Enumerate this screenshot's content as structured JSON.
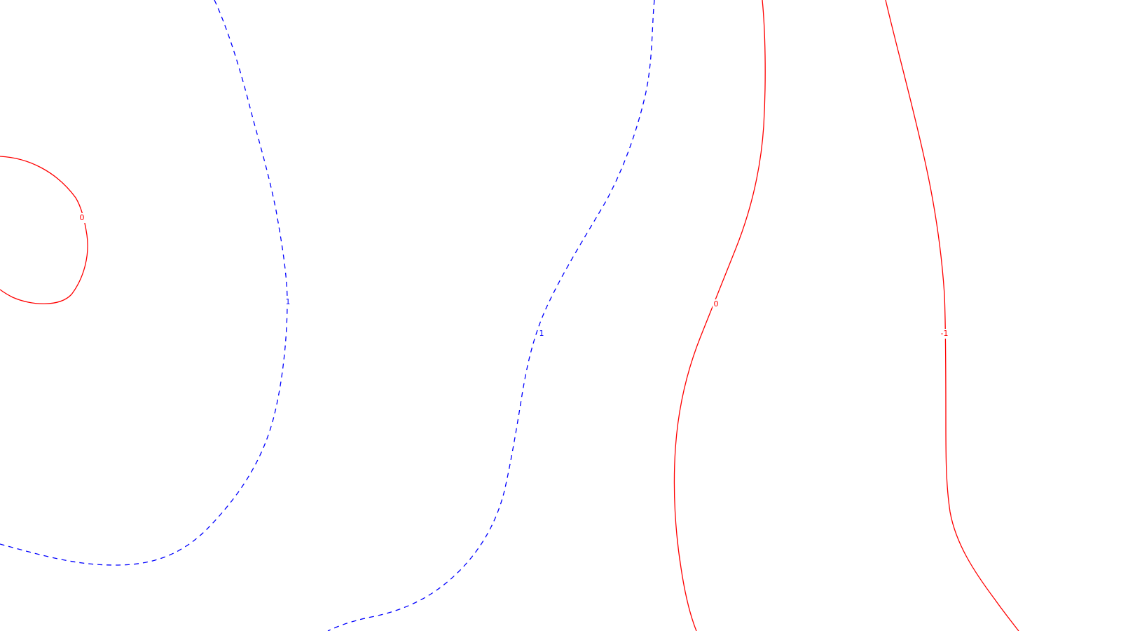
{
  "chart_data": {
    "type": "contour",
    "title": "",
    "xlabel": "",
    "ylabel": "",
    "axes_visible": false,
    "grid": false,
    "legend": "none",
    "background": "#ffffff",
    "styles": {
      "positive": {
        "color": "#0000ff",
        "linestyle": "dashed"
      },
      "zero_or_negative": {
        "color": "#ff0000",
        "linestyle": "solid"
      }
    },
    "contours": [
      {
        "id": "zero-loop-left",
        "level": 0,
        "label": "0",
        "color": "#ff0000",
        "dashed": false
      },
      {
        "id": "one-left",
        "level": 1,
        "label": "1",
        "color": "#0000ff",
        "dashed": true
      },
      {
        "id": "one-middle",
        "level": 1,
        "label": "1",
        "color": "#0000ff",
        "dashed": true
      },
      {
        "id": "zero-right",
        "level": 0,
        "label": "0",
        "color": "#ff0000",
        "dashed": false
      },
      {
        "id": "minus-one-right",
        "level": -1,
        "label": "-1",
        "color": "#ff0000",
        "dashed": false
      }
    ]
  }
}
